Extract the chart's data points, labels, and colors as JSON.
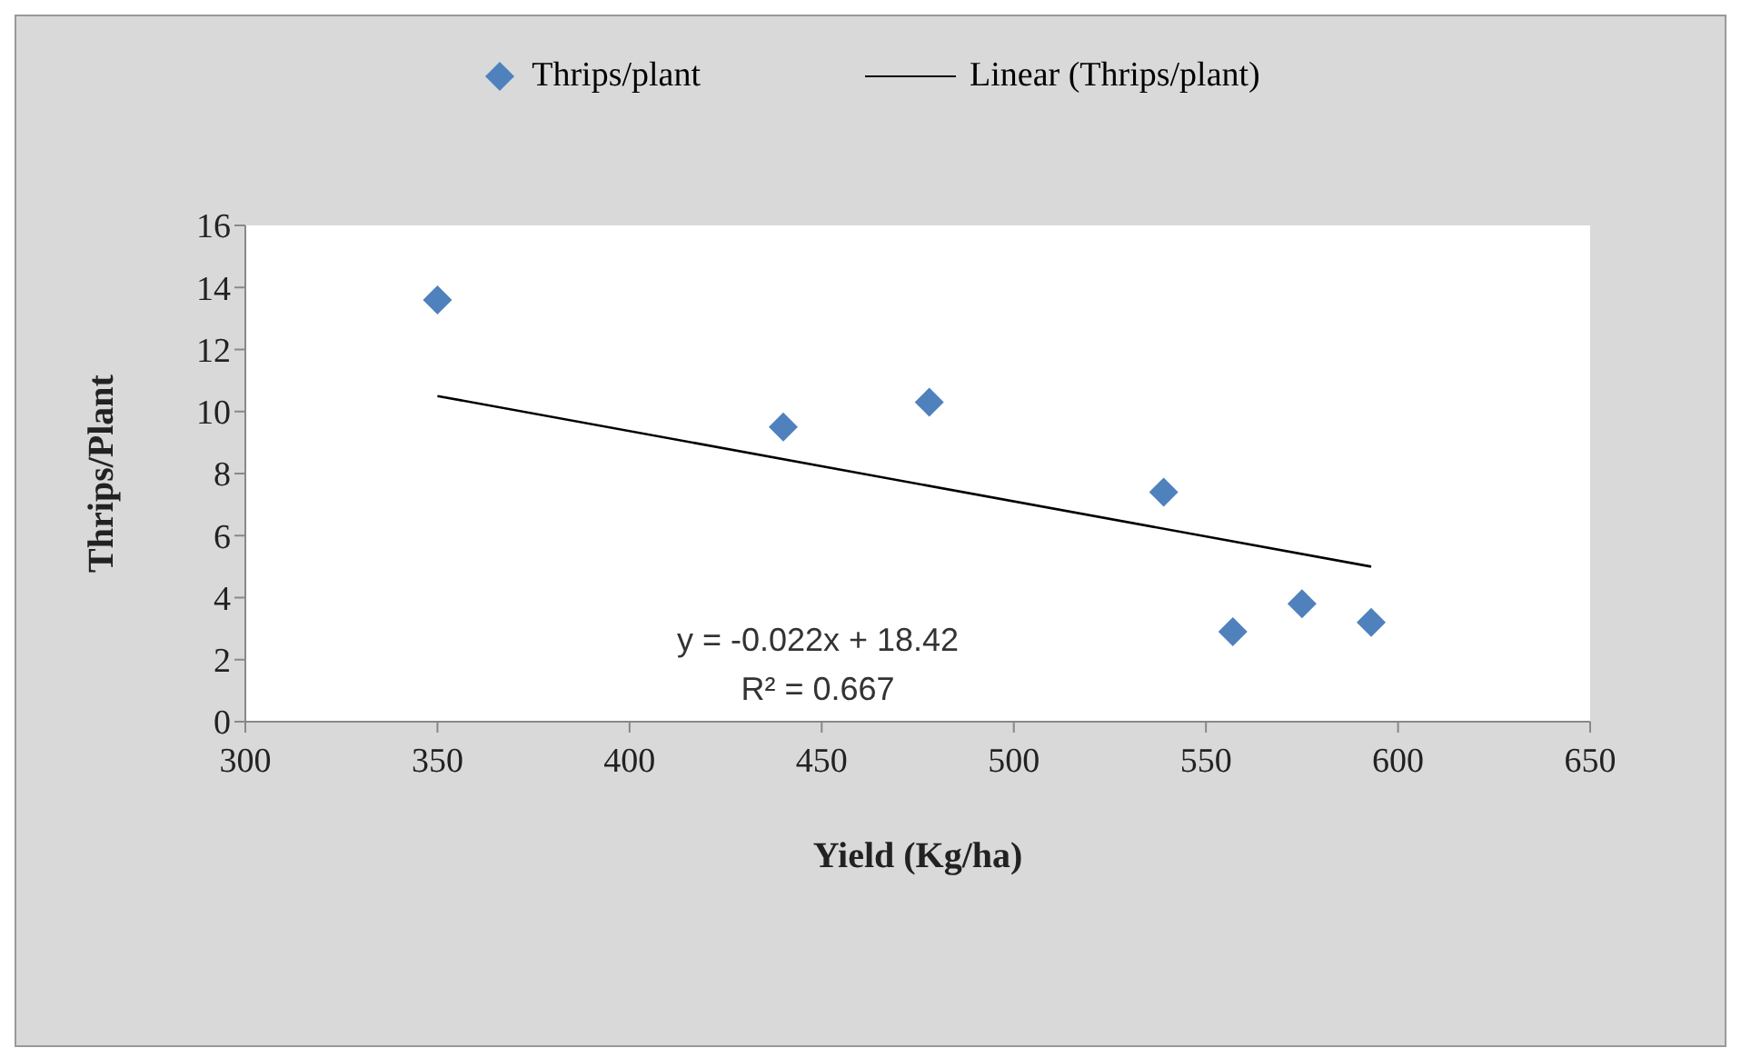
{
  "chart_data": {
    "type": "scatter",
    "xlabel": "Yield (Kg/ha)",
    "ylabel": "Thrips/Plant",
    "xlim": [
      300,
      650
    ],
    "xticks": [
      300,
      350,
      400,
      450,
      500,
      550,
      600,
      650
    ],
    "ylim": [
      0,
      16
    ],
    "yticks": [
      0,
      2,
      4,
      6,
      8,
      10,
      12,
      14,
      16
    ],
    "series": [
      {
        "name": "Thrips/plant",
        "type": "scatter",
        "color": "#4f81bd",
        "marker": "diamond",
        "x": [
          350,
          440,
          478,
          539,
          557,
          575,
          593
        ],
        "values": [
          13.6,
          9.5,
          10.3,
          7.4,
          2.9,
          3.8,
          3.2
        ]
      },
      {
        "name": "Linear (Thrips/plant)",
        "type": "line",
        "color": "#000000",
        "marker": "none",
        "line_style": "solid",
        "x": [
          350,
          593
        ],
        "values": [
          10.5,
          5.0
        ]
      }
    ],
    "annotations": [
      "y = -0.022x + 18.42",
      "R² = 0.667"
    ],
    "legend": "top",
    "grid": false
  }
}
